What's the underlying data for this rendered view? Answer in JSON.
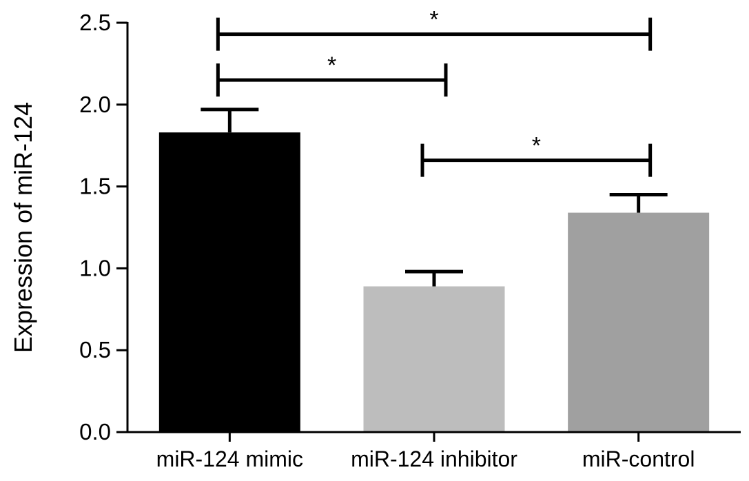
{
  "chart_data": {
    "type": "bar",
    "title": "",
    "xlabel": "",
    "ylabel": "Expression of miR-124",
    "ylim": [
      0,
      2.5
    ],
    "yticks": [
      0.0,
      0.5,
      1.0,
      1.5,
      2.0,
      2.5
    ],
    "ytick_labels": [
      "0.0",
      "0.5",
      "1.0",
      "1.5",
      "2.0",
      "2.5"
    ],
    "categories": [
      "miR-124 mimic",
      "miR-124 inhibitor",
      "miR-control"
    ],
    "values": [
      1.83,
      0.89,
      1.34
    ],
    "errors": [
      0.14,
      0.09,
      0.11
    ],
    "colors": [
      "#000000",
      "#bdbdbd",
      "#a0a0a0"
    ],
    "grid": false,
    "legend": "none",
    "significance": [
      {
        "from": 0,
        "to": 1,
        "y": 2.15,
        "label": "*"
      },
      {
        "from": 0,
        "to": 2,
        "y": 2.43,
        "label": "*"
      },
      {
        "from": 1,
        "to": 2,
        "y": 1.66,
        "label": "*"
      }
    ]
  }
}
